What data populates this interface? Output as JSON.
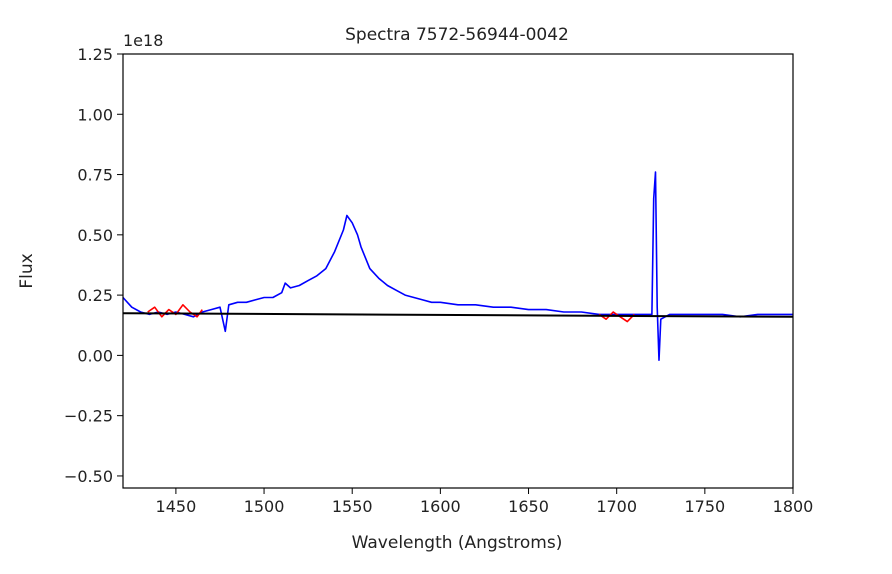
{
  "chart_data": {
    "type": "line",
    "title": "Spectra 7572-56944-0042",
    "xlabel": "Wavelength (Angstroms)",
    "ylabel": "Flux",
    "y_offset_label": "1e18",
    "xlim": [
      1420,
      1800
    ],
    "ylim": [
      -0.55,
      1.25
    ],
    "xticks": [
      1450,
      1500,
      1550,
      1600,
      1650,
      1700,
      1750,
      1800
    ],
    "yticks": [
      -0.5,
      -0.25,
      0.0,
      0.25,
      0.5,
      0.75,
      1.0,
      1.25
    ],
    "ytick_labels": [
      "−0.50",
      "−0.25",
      "0.00",
      "0.25",
      "0.50",
      "0.75",
      "1.00",
      "1.25"
    ],
    "grid": false,
    "series": [
      {
        "color": "#0000ff",
        "x": [
          1420,
          1425,
          1430,
          1435,
          1440,
          1445,
          1450,
          1455,
          1460,
          1465,
          1470,
          1475,
          1478,
          1480,
          1485,
          1490,
          1495,
          1500,
          1505,
          1510,
          1512,
          1515,
          1520,
          1525,
          1530,
          1535,
          1540,
          1545,
          1547,
          1550,
          1553,
          1555,
          1560,
          1565,
          1570,
          1575,
          1580,
          1585,
          1590,
          1595,
          1600,
          1610,
          1620,
          1630,
          1640,
          1650,
          1660,
          1670,
          1680,
          1690,
          1700,
          1710,
          1715,
          1720,
          1721,
          1722,
          1723,
          1724,
          1725,
          1730,
          1740,
          1750,
          1760,
          1770,
          1780,
          1790,
          1800
        ],
        "y": [
          0.24,
          0.2,
          0.18,
          0.17,
          0.18,
          0.17,
          0.18,
          0.17,
          0.16,
          0.18,
          0.19,
          0.2,
          0.1,
          0.21,
          0.22,
          0.22,
          0.23,
          0.24,
          0.24,
          0.26,
          0.3,
          0.28,
          0.29,
          0.31,
          0.33,
          0.36,
          0.43,
          0.52,
          0.58,
          0.55,
          0.5,
          0.45,
          0.36,
          0.32,
          0.29,
          0.27,
          0.25,
          0.24,
          0.23,
          0.22,
          0.22,
          0.21,
          0.21,
          0.2,
          0.2,
          0.19,
          0.19,
          0.18,
          0.18,
          0.17,
          0.17,
          0.17,
          0.17,
          0.17,
          0.65,
          0.76,
          0.2,
          -0.02,
          0.15,
          0.17,
          0.17,
          0.17,
          0.17,
          0.16,
          0.17,
          0.17,
          0.17
        ]
      },
      {
        "color": "#ff0000",
        "x": [
          1434,
          1438,
          1442,
          1446,
          1450,
          1454,
          1458,
          1462,
          1465
        ],
        "y": [
          0.18,
          0.2,
          0.16,
          0.19,
          0.17,
          0.21,
          0.18,
          0.16,
          0.19
        ]
      },
      {
        "color": "#ff0000",
        "x": [
          1690,
          1694,
          1698,
          1702,
          1706,
          1710
        ],
        "y": [
          0.17,
          0.15,
          0.18,
          0.16,
          0.14,
          0.17
        ]
      },
      {
        "color": "#000000",
        "x": [
          1420,
          1800
        ],
        "y": [
          0.175,
          0.16
        ]
      }
    ]
  }
}
